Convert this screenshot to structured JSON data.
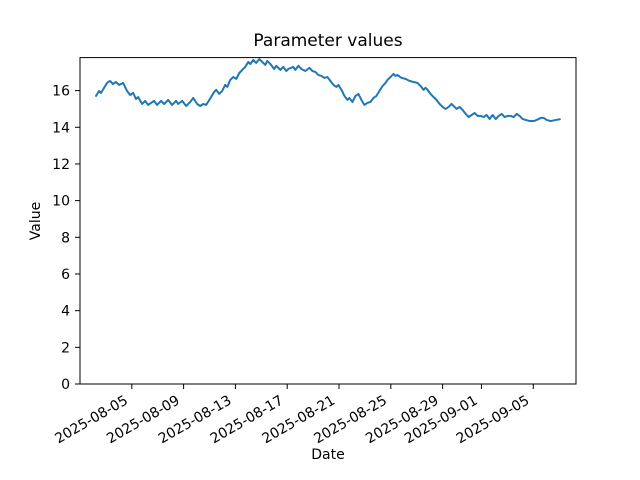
{
  "chart_data": {
    "type": "line",
    "title": "Parameter values",
    "xlabel": "Date",
    "ylabel": "Value",
    "grid": false,
    "legend": "none",
    "line_color": "#1f77b4",
    "line_width": 2,
    "x_unit": "days since 2025-08-01",
    "xlim": [
      0,
      38.3
    ],
    "ylim": [
      0,
      17.8
    ],
    "x_ticks": [
      {
        "d": 4,
        "label": "2025-08-05"
      },
      {
        "d": 8,
        "label": "2025-08-09"
      },
      {
        "d": 12,
        "label": "2025-08-13"
      },
      {
        "d": 16,
        "label": "2025-08-17"
      },
      {
        "d": 20,
        "label": "2025-08-21"
      },
      {
        "d": 24,
        "label": "2025-08-25"
      },
      {
        "d": 28,
        "label": "2025-08-29"
      },
      {
        "d": 31,
        "label": "2025-09-01"
      },
      {
        "d": 35,
        "label": "2025-09-05"
      }
    ],
    "y_ticks": [
      0,
      2,
      4,
      6,
      8,
      10,
      12,
      14,
      16
    ],
    "points": [
      [
        1.24,
        15.71
      ],
      [
        1.47,
        15.98
      ],
      [
        1.62,
        15.87
      ],
      [
        2.09,
        16.42
      ],
      [
        2.32,
        16.53
      ],
      [
        2.55,
        16.36
      ],
      [
        2.78,
        16.47
      ],
      [
        3.02,
        16.31
      ],
      [
        3.33,
        16.42
      ],
      [
        3.63,
        15.98
      ],
      [
        3.87,
        15.76
      ],
      [
        4.1,
        15.87
      ],
      [
        4.33,
        15.54
      ],
      [
        4.49,
        15.65
      ],
      [
        4.8,
        15.27
      ],
      [
        5.03,
        15.44
      ],
      [
        5.26,
        15.22
      ],
      [
        5.72,
        15.44
      ],
      [
        5.95,
        15.22
      ],
      [
        6.26,
        15.44
      ],
      [
        6.5,
        15.27
      ],
      [
        6.81,
        15.49
      ],
      [
        7.11,
        15.22
      ],
      [
        7.42,
        15.44
      ],
      [
        7.58,
        15.27
      ],
      [
        7.89,
        15.44
      ],
      [
        8.2,
        15.16
      ],
      [
        8.51,
        15.38
      ],
      [
        8.74,
        15.6
      ],
      [
        9.05,
        15.27
      ],
      [
        9.28,
        15.16
      ],
      [
        9.51,
        15.27
      ],
      [
        9.74,
        15.22
      ],
      [
        10.13,
        15.65
      ],
      [
        10.36,
        15.93
      ],
      [
        10.52,
        16.04
      ],
      [
        10.75,
        15.82
      ],
      [
        10.98,
        15.98
      ],
      [
        11.21,
        16.31
      ],
      [
        11.37,
        16.2
      ],
      [
        11.6,
        16.58
      ],
      [
        11.83,
        16.74
      ],
      [
        12.07,
        16.64
      ],
      [
        12.3,
        16.96
      ],
      [
        12.53,
        17.13
      ],
      [
        12.76,
        17.29
      ],
      [
        12.99,
        17.56
      ],
      [
        13.15,
        17.45
      ],
      [
        13.38,
        17.67
      ],
      [
        13.61,
        17.51
      ],
      [
        13.84,
        17.72
      ],
      [
        14.08,
        17.56
      ],
      [
        14.31,
        17.4
      ],
      [
        14.46,
        17.62
      ],
      [
        14.7,
        17.45
      ],
      [
        15.0,
        17.18
      ],
      [
        15.16,
        17.35
      ],
      [
        15.47,
        17.13
      ],
      [
        15.7,
        17.29
      ],
      [
        15.93,
        17.07
      ],
      [
        16.09,
        17.18
      ],
      [
        16.47,
        17.29
      ],
      [
        16.63,
        17.13
      ],
      [
        16.86,
        17.35
      ],
      [
        17.09,
        17.18
      ],
      [
        17.4,
        17.07
      ],
      [
        17.71,
        17.24
      ],
      [
        17.94,
        17.07
      ],
      [
        18.17,
        17.02
      ],
      [
        18.41,
        16.85
      ],
      [
        18.64,
        16.8
      ],
      [
        18.87,
        16.69
      ],
      [
        19.1,
        16.74
      ],
      [
        19.33,
        16.53
      ],
      [
        19.57,
        16.31
      ],
      [
        19.8,
        16.2
      ],
      [
        19.95,
        16.31
      ],
      [
        20.19,
        16.04
      ],
      [
        20.42,
        15.71
      ],
      [
        20.65,
        15.49
      ],
      [
        20.8,
        15.6
      ],
      [
        21.04,
        15.38
      ],
      [
        21.27,
        15.71
      ],
      [
        21.5,
        15.82
      ],
      [
        21.73,
        15.49
      ],
      [
        21.96,
        15.22
      ],
      [
        22.2,
        15.33
      ],
      [
        22.43,
        15.38
      ],
      [
        22.66,
        15.6
      ],
      [
        22.89,
        15.71
      ],
      [
        23.12,
        15.98
      ],
      [
        23.36,
        16.25
      ],
      [
        23.59,
        16.42
      ],
      [
        23.74,
        16.58
      ],
      [
        23.97,
        16.74
      ],
      [
        24.21,
        16.91
      ],
      [
        24.36,
        16.8
      ],
      [
        24.52,
        16.85
      ],
      [
        24.83,
        16.69
      ],
      [
        25.14,
        16.64
      ],
      [
        25.44,
        16.53
      ],
      [
        25.75,
        16.47
      ],
      [
        26.06,
        16.42
      ],
      [
        26.3,
        16.25
      ],
      [
        26.53,
        16.04
      ],
      [
        26.68,
        16.15
      ],
      [
        26.84,
        16.04
      ],
      [
        27.07,
        15.82
      ],
      [
        27.3,
        15.65
      ],
      [
        27.53,
        15.49
      ],
      [
        27.77,
        15.27
      ],
      [
        28.0,
        15.11
      ],
      [
        28.23,
        15.0
      ],
      [
        28.46,
        15.11
      ],
      [
        28.69,
        15.27
      ],
      [
        28.85,
        15.16
      ],
      [
        29.08,
        15.0
      ],
      [
        29.31,
        15.11
      ],
      [
        29.54,
        14.95
      ],
      [
        29.78,
        14.73
      ],
      [
        30.01,
        14.56
      ],
      [
        30.24,
        14.67
      ],
      [
        30.47,
        14.78
      ],
      [
        30.7,
        14.62
      ],
      [
        30.94,
        14.62
      ],
      [
        31.17,
        14.56
      ],
      [
        31.4,
        14.67
      ],
      [
        31.63,
        14.45
      ],
      [
        31.86,
        14.67
      ],
      [
        32.1,
        14.45
      ],
      [
        32.33,
        14.62
      ],
      [
        32.56,
        14.73
      ],
      [
        32.79,
        14.56
      ],
      [
        33.02,
        14.62
      ],
      [
        33.26,
        14.62
      ],
      [
        33.49,
        14.56
      ],
      [
        33.72,
        14.73
      ],
      [
        33.95,
        14.62
      ],
      [
        34.18,
        14.45
      ],
      [
        34.42,
        14.4
      ],
      [
        34.73,
        14.34
      ],
      [
        35.04,
        14.34
      ],
      [
        35.27,
        14.4
      ],
      [
        35.58,
        14.51
      ],
      [
        35.81,
        14.51
      ],
      [
        36.04,
        14.4
      ],
      [
        36.35,
        14.34
      ],
      [
        36.74,
        14.4
      ],
      [
        37.05,
        14.44
      ]
    ]
  }
}
